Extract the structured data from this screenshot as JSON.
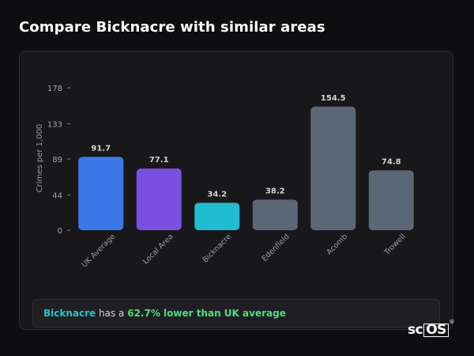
{
  "page": {
    "title": "Compare Bicknacre with similar areas"
  },
  "summary": {
    "area": "Bicknacre",
    "middle": "has a",
    "stat": "62.7% lower than UK average"
  },
  "logo": {
    "prefix": "sc",
    "boxed": "OS",
    "mark": "®"
  },
  "colors": {
    "uk_average": "#3b78e7",
    "local_area": "#7b4fe0",
    "bicknacre": "#22bcd0",
    "other": "#5b6677"
  },
  "chart_data": {
    "type": "bar",
    "ylabel": "Crimes per 1,000",
    "xlabel": "",
    "ylim": [
      0,
      178
    ],
    "yticks": [
      0,
      44,
      89,
      133,
      178
    ],
    "grid": false,
    "categories": [
      "UK Average",
      "Local Area",
      "Bicknacre",
      "Edenfield",
      "Acomb",
      "Trowell"
    ],
    "values": [
      91.7,
      77.1,
      34.2,
      38.2,
      154.5,
      74.8
    ],
    "value_labels": [
      "91.7",
      "77.1",
      "34.2",
      "38.2",
      "154.5",
      "74.8"
    ],
    "bar_colors": [
      "#3b78e7",
      "#7b4fe0",
      "#22bcd0",
      "#5b6677",
      "#5b6677",
      "#5b6677"
    ]
  }
}
